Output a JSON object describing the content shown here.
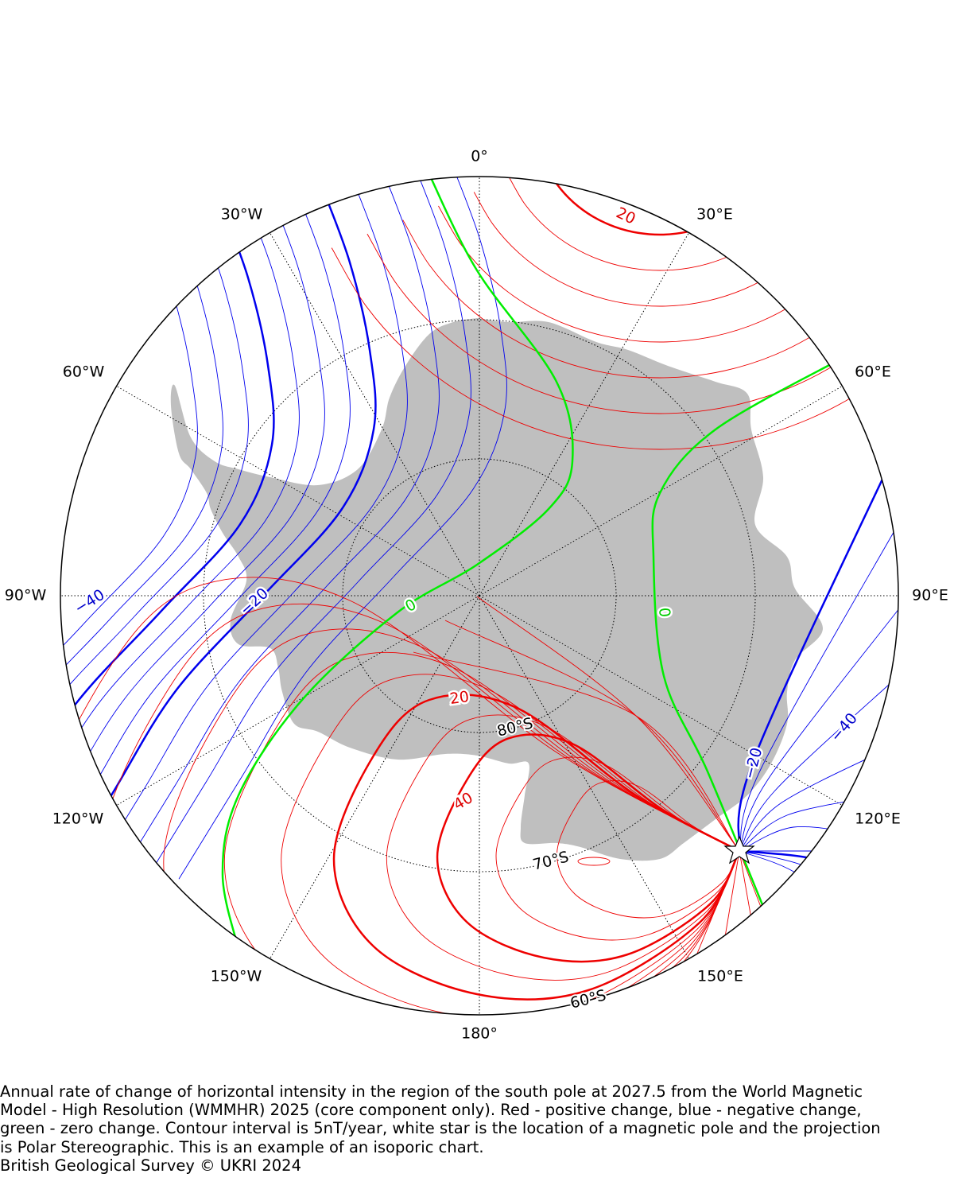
{
  "map": {
    "longitude_labels": [
      "0°",
      "30°W",
      "30°E",
      "60°W",
      "60°E",
      "90°W",
      "90°E",
      "120°W",
      "120°E",
      "150°W",
      "150°E",
      "180°"
    ],
    "latitude_labels": [
      "80°S",
      "70°S",
      "60°S"
    ],
    "contour_labels": [
      "−40",
      "−20",
      "0",
      "0",
      "20",
      "40",
      "20",
      "−20",
      "−40"
    ]
  },
  "caption": {
    "lines": [
      "Annual rate of change of horizontal intensity in the region of the south pole at 2027.5 from the World Magnetic",
      "Model - High Resolution (WMMHR) 2025 (core component only). Red - positive change, blue - negative change,",
      "green - zero change. Contour interval is 5nT/year, white star is the location of a magnetic pole and the projection",
      "is Polar Stereographic. This is an example of an isoporic chart."
    ],
    "credit": "British Geological Survey © UKRI 2024"
  }
}
